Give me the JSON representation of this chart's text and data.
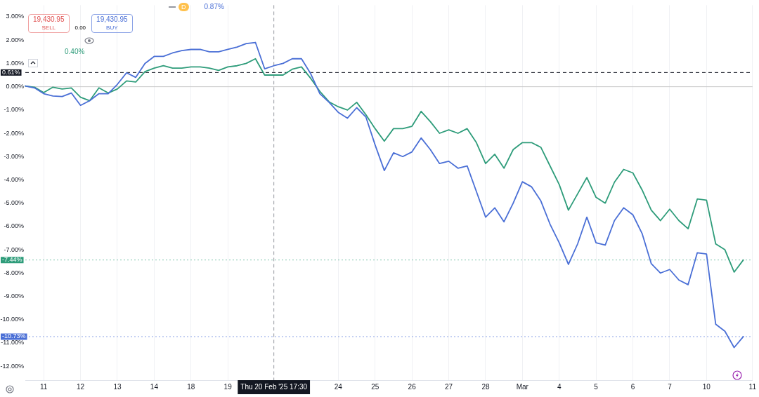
{
  "chart_data": {
    "type": "line",
    "categories": [
      null,
      null,
      "11",
      null,
      null,
      null,
      "12",
      null,
      null,
      null,
      "13",
      null,
      null,
      null,
      "14",
      null,
      null,
      null,
      "18",
      null,
      null,
      null,
      "19",
      null,
      null,
      null,
      null,
      "Thu 20 Feb '25 17:30",
      null,
      null,
      null,
      null,
      null,
      null,
      "24",
      null,
      null,
      null,
      "25",
      null,
      null,
      null,
      "26",
      null,
      null,
      null,
      "27",
      null,
      null,
      null,
      "28",
      null,
      null,
      null,
      "Mar",
      null,
      null,
      null,
      "4",
      null,
      null,
      null,
      "5",
      null,
      null,
      null,
      "6",
      null,
      null,
      null,
      "7",
      null,
      null,
      null,
      "10",
      null,
      null,
      null,
      null,
      "11"
    ],
    "series": [
      {
        "color": "#4a6fd6",
        "values": [
          0.03,
          -0.05,
          -0.3,
          -0.4,
          -0.42,
          -0.27,
          -0.8,
          -0.6,
          -0.3,
          -0.3,
          0.1,
          0.6,
          0.4,
          1.0,
          1.3,
          1.3,
          1.45,
          1.55,
          1.6,
          1.6,
          1.5,
          1.5,
          1.6,
          1.7,
          1.85,
          1.9,
          0.77,
          0.9,
          1.0,
          1.2,
          1.2,
          0.56,
          -0.3,
          -0.67,
          -1.1,
          -1.35,
          -0.9,
          -1.3,
          -2.5,
          -3.6,
          -2.84,
          -3.0,
          -2.8,
          -2.2,
          -2.7,
          -3.3,
          -3.2,
          -3.5,
          -3.4,
          -4.5,
          -5.6,
          -5.2,
          -5.8,
          -5.0,
          -4.08,
          -4.3,
          -4.9,
          -5.9,
          -6.7,
          -7.63,
          -6.75,
          -5.6,
          -6.7,
          -6.8,
          -5.75,
          -5.2,
          -5.5,
          -6.3,
          -7.6,
          -8.0,
          -7.85,
          -8.3,
          -8.5,
          -7.13,
          -7.18,
          -10.2,
          -10.5,
          -11.2,
          -10.73,
          null
        ]
      },
      {
        "color": "#2e9c7a",
        "values": [
          0.03,
          -0.02,
          -0.25,
          -0.02,
          -0.1,
          -0.05,
          -0.45,
          -0.6,
          -0.05,
          -0.27,
          -0.1,
          0.25,
          0.2,
          0.65,
          0.8,
          0.9,
          0.8,
          0.8,
          0.85,
          0.85,
          0.8,
          0.7,
          0.85,
          0.9,
          1.0,
          1.2,
          0.5,
          0.5,
          0.5,
          0.75,
          0.85,
          0.36,
          -0.2,
          -0.65,
          -0.86,
          -1.0,
          -0.67,
          -1.2,
          -1.8,
          -2.34,
          -1.8,
          -1.8,
          -1.7,
          -1.06,
          -1.5,
          -2.0,
          -1.85,
          -2.0,
          -1.8,
          -2.4,
          -3.3,
          -2.9,
          -3.5,
          -2.7,
          -2.4,
          -2.4,
          -2.6,
          -3.4,
          -4.2,
          -5.3,
          -4.6,
          -3.9,
          -4.75,
          -5.0,
          -4.1,
          -3.55,
          -3.7,
          -4.43,
          -5.3,
          -5.75,
          -5.26,
          -5.75,
          -6.1,
          -4.82,
          -4.87,
          -6.75,
          -7.0,
          -7.96,
          -7.44,
          null
        ]
      }
    ],
    "ylim": [
      -12.6,
      3.5
    ],
    "yticks": [
      {
        "value": 3,
        "label": "3.00%"
      },
      {
        "value": 2,
        "label": "2.00%"
      },
      {
        "value": 1,
        "label": "1.00%"
      },
      {
        "value": 0,
        "label": "0.00%"
      },
      {
        "value": -1,
        "label": "-1.00%"
      },
      {
        "value": -2,
        "label": "-2.00%"
      },
      {
        "value": -3,
        "label": "-3.00%"
      },
      {
        "value": -4,
        "label": "-4.00%"
      },
      {
        "value": -5,
        "label": "-5.00%"
      },
      {
        "value": -6,
        "label": "-6.00%"
      },
      {
        "value": -7,
        "label": "-7.00%"
      },
      {
        "value": -8,
        "label": "-8.00%"
      },
      {
        "value": -9,
        "label": "-9.00%"
      },
      {
        "value": -10,
        "label": "-10.00%"
      },
      {
        "value": -11,
        "label": "-11.00%"
      },
      {
        "value": -12,
        "label": "-12.00%"
      }
    ],
    "grid": "x",
    "legend": false,
    "marker": "none",
    "line_style": "solid",
    "ref_lines": [
      {
        "axis": "y",
        "value": 0,
        "color": "#c8c8c8",
        "line_style": "solid"
      },
      {
        "axis": "y",
        "value": 0.61,
        "label": "0.61%",
        "color": "#131722",
        "line_style": "dashed"
      },
      {
        "axis": "y",
        "value": -7.44,
        "label": "-7.44%",
        "color": "#2e9c7a",
        "line_style": "dotted"
      },
      {
        "axis": "y",
        "value": -10.73,
        "label": "-10.73%",
        "color": "#4a6fd6",
        "line_style": "dotted"
      },
      {
        "axis": "x",
        "value": "Thu 20 Feb '25 17:30",
        "color": "#9598a1",
        "line_style": "dashed"
      }
    ],
    "annotations": [
      "19,430.95",
      "SELL",
      "0.00",
      "19,430.95",
      "BUY",
      "D",
      "0.87%",
      "0.40%"
    ]
  }
}
